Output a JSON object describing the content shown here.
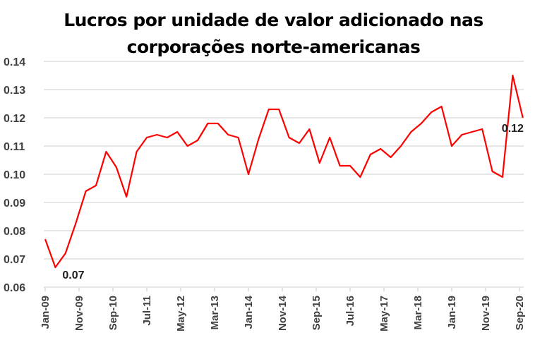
{
  "chart_data": {
    "type": "line",
    "title": [
      "Lucros por unidade de valor adicionado nas",
      "corporações norte-americanas"
    ],
    "xlabel": "",
    "ylabel": "",
    "ylim": [
      0.06,
      0.14
    ],
    "yticks": [
      "0.06",
      "0.07",
      "0.08",
      "0.09",
      "0.10",
      "0.11",
      "0.12",
      "0.13",
      "0.14"
    ],
    "xticks": [
      "Jan-09",
      "Nov-09",
      "Sep-10",
      "Jul-11",
      "May-12",
      "Mar-13",
      "Jan-14",
      "Nov-14",
      "Sep-15",
      "Jul-16",
      "May-17",
      "Mar-18",
      "Jan-19",
      "Nov-19",
      "Sep-20"
    ],
    "grid": true,
    "color": "#ff0000",
    "x": [
      "Jan-09",
      "Apr-09",
      "Jul-09",
      "Oct-09",
      "Jan-10",
      "Apr-10",
      "Jul-10",
      "Oct-10",
      "Jan-11",
      "Apr-11",
      "Jul-11",
      "Oct-11",
      "Jan-12",
      "Apr-12",
      "Jul-12",
      "Oct-12",
      "Jan-13",
      "Apr-13",
      "Jul-13",
      "Oct-13",
      "Jan-14",
      "Apr-14",
      "Jul-14",
      "Oct-14",
      "Jan-15",
      "Apr-15",
      "Jul-15",
      "Oct-15",
      "Jan-16",
      "Apr-16",
      "Jul-16",
      "Oct-16",
      "Jan-17",
      "Apr-17",
      "Jul-17",
      "Oct-17",
      "Jan-18",
      "Apr-18",
      "Jul-18",
      "Oct-18",
      "Jan-19",
      "Apr-19",
      "Jul-19",
      "Oct-19",
      "Jan-20",
      "Apr-20",
      "Jul-20",
      "Oct-20"
    ],
    "values": [
      0.077,
      0.067,
      0.072,
      0.0825,
      0.094,
      0.096,
      0.108,
      0.1025,
      0.092,
      0.108,
      0.113,
      0.114,
      0.113,
      0.115,
      0.11,
      0.112,
      0.118,
      0.118,
      0.114,
      0.113,
      0.1,
      0.1125,
      0.123,
      0.123,
      0.113,
      0.111,
      0.116,
      0.104,
      0.113,
      0.103,
      0.103,
      0.099,
      0.107,
      0.109,
      0.106,
      0.11,
      0.115,
      0.118,
      0.122,
      0.124,
      0.11,
      0.114,
      0.115,
      0.116,
      0.101,
      0.099,
      0.135,
      0.12
    ],
    "annotations": [
      {
        "label": "0.07",
        "index": 1
      },
      {
        "label": "0.12",
        "index": 47
      }
    ]
  }
}
